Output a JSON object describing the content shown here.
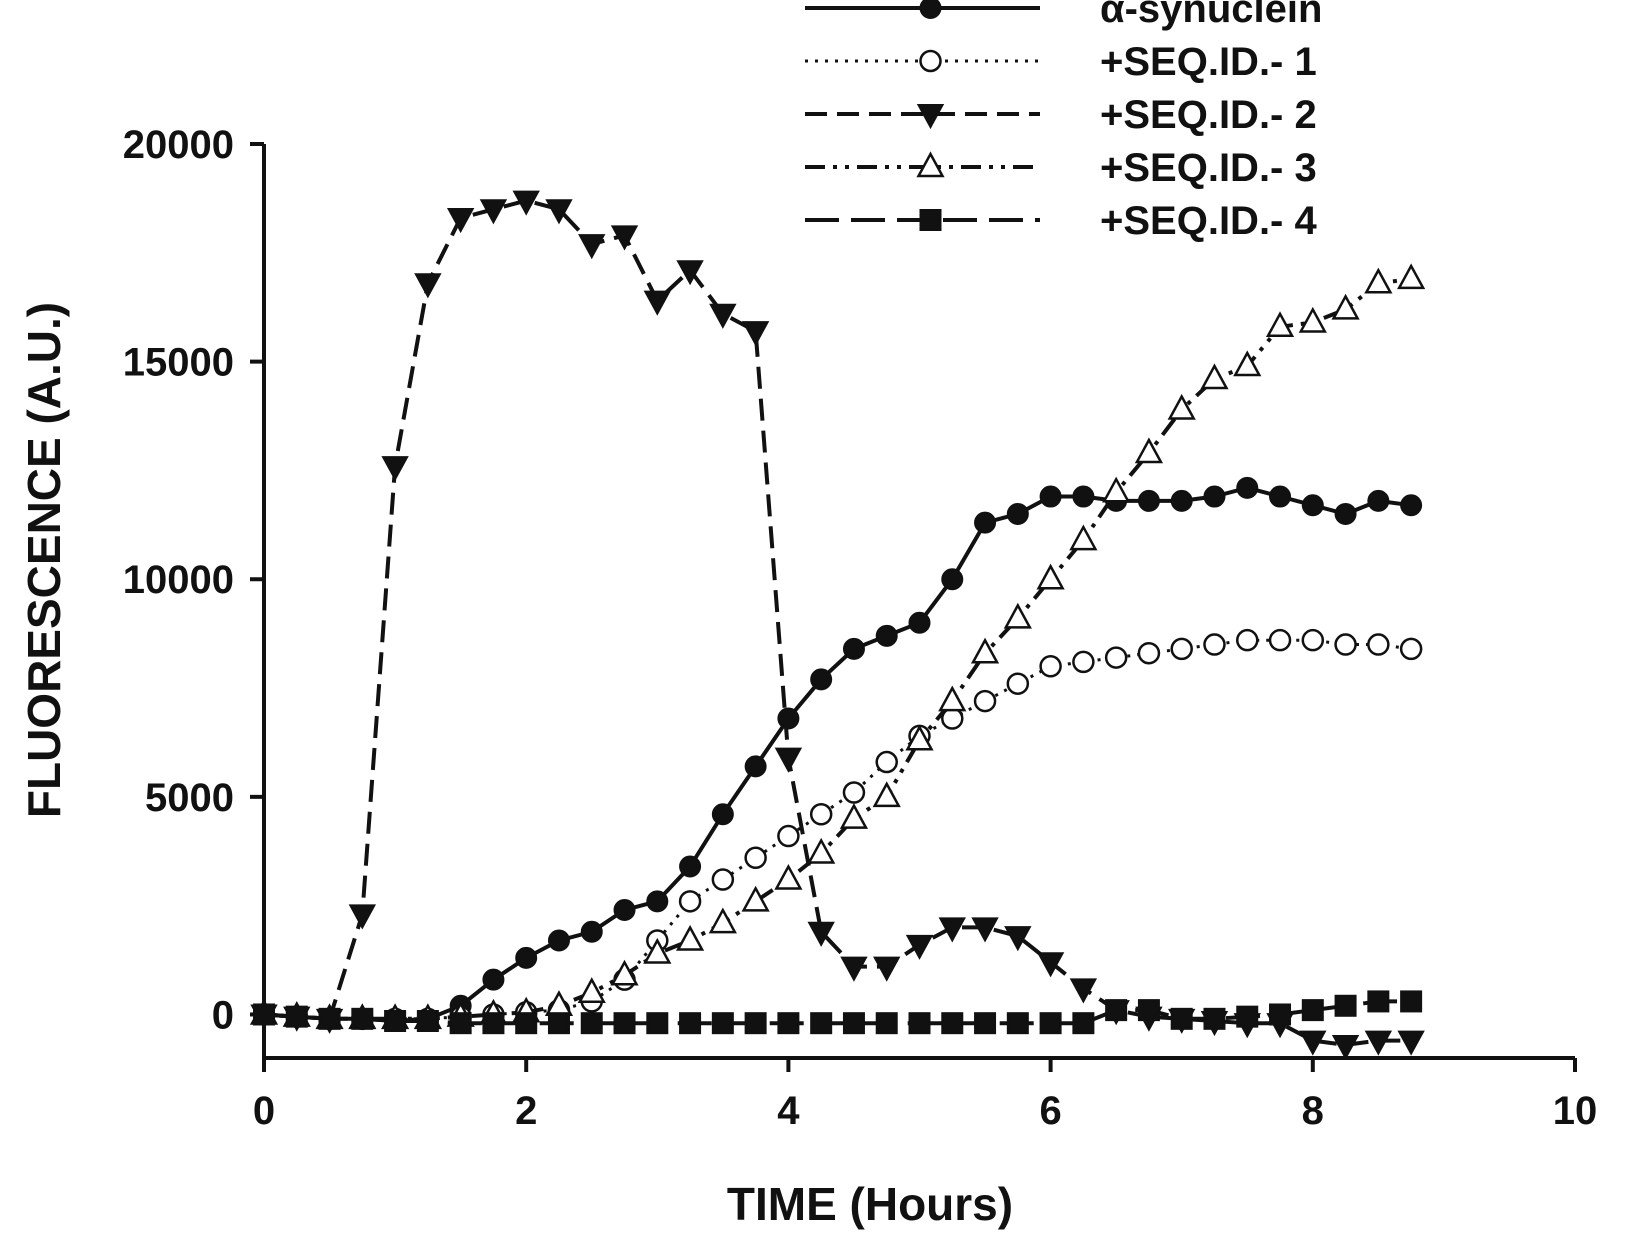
{
  "chart_data": {
    "type": "line",
    "title": "",
    "xlabel": "TIME (Hours)",
    "ylabel": "FLUORESCENCE (A.U.)",
    "xlim": [
      0,
      10
    ],
    "ylim": [
      -1000,
      20000
    ],
    "xticks": [
      0,
      2,
      4,
      6,
      8,
      10
    ],
    "yticks": [
      0,
      5000,
      10000,
      15000,
      20000
    ],
    "xtick_labels": [
      "0",
      "2",
      "4",
      "6",
      "8",
      "10"
    ],
    "ytick_labels": [
      "0",
      "5000",
      "10000",
      "15000",
      "20000"
    ],
    "grid": false,
    "legend_position": "top-right",
    "series": [
      {
        "name": "α-synuclein",
        "marker": "filled-circle",
        "line": "solid",
        "x": [
          0,
          0.25,
          0.5,
          0.75,
          1,
          1.25,
          1.5,
          1.75,
          2,
          2.25,
          2.5,
          2.75,
          3,
          3.25,
          3.5,
          3.75,
          4,
          4.25,
          4.5,
          4.75,
          5,
          5.25,
          5.5,
          5.75,
          6,
          6.25,
          6.5,
          6.75,
          7,
          7.25,
          7.5,
          7.75,
          8,
          8.25,
          8.5,
          8.75
        ],
        "y": [
          0,
          -50,
          -100,
          -100,
          -150,
          -100,
          200,
          800,
          1300,
          1700,
          1900,
          2400,
          2600,
          3400,
          4600,
          5700,
          6800,
          7700,
          8400,
          8700,
          9000,
          10000,
          11300,
          11500,
          11900,
          11900,
          11800,
          11800,
          11800,
          11900,
          12100,
          11900,
          11700,
          11500,
          11800,
          11700
        ]
      },
      {
        "name": "+SEQ.ID.- 1",
        "marker": "open-circle",
        "line": "dotted",
        "x": [
          0,
          0.25,
          0.5,
          0.75,
          1,
          1.25,
          1.5,
          1.75,
          2,
          2.25,
          2.5,
          2.75,
          3,
          3.25,
          3.5,
          3.75,
          4,
          4.25,
          4.5,
          4.75,
          5,
          5.25,
          5.5,
          5.75,
          6,
          6.25,
          6.5,
          6.75,
          7,
          7.25,
          7.5,
          7.75,
          8,
          8.25,
          8.5,
          8.75
        ],
        "y": [
          0,
          -50,
          -100,
          -100,
          -100,
          -100,
          -50,
          0,
          50,
          100,
          300,
          800,
          1700,
          2600,
          3100,
          3600,
          4100,
          4600,
          5100,
          5800,
          6400,
          6800,
          7200,
          7600,
          8000,
          8100,
          8200,
          8300,
          8400,
          8500,
          8600,
          8600,
          8600,
          8500,
          8500,
          8400
        ]
      },
      {
        "name": "+SEQ.ID.- 2",
        "marker": "filled-triangle-down",
        "line": "dashed",
        "x": [
          0,
          0.25,
          0.5,
          0.75,
          1,
          1.25,
          1.5,
          1.75,
          2,
          2.25,
          2.5,
          2.75,
          3,
          3.25,
          3.5,
          3.75,
          4,
          4.25,
          4.5,
          4.75,
          5,
          5.25,
          5.5,
          5.75,
          6,
          6.25,
          6.5,
          6.75,
          7,
          7.25,
          7.5,
          7.75,
          8,
          8.25,
          8.5,
          8.75
        ],
        "y": [
          0,
          -50,
          -100,
          2300,
          12600,
          16800,
          18300,
          18500,
          18700,
          18500,
          17700,
          17900,
          16400,
          17100,
          16100,
          15700,
          5900,
          1900,
          1100,
          1100,
          1600,
          2000,
          2000,
          1800,
          1200,
          600,
          100,
          -50,
          -100,
          -150,
          -200,
          -200,
          -600,
          -700,
          -600,
          -600
        ]
      },
      {
        "name": "+SEQ.ID.- 3",
        "marker": "open-triangle-up",
        "line": "dash-dot-dot",
        "x": [
          0,
          0.25,
          0.5,
          0.75,
          1,
          1.25,
          1.5,
          1.75,
          2,
          2.25,
          2.5,
          2.75,
          3,
          3.25,
          3.5,
          3.75,
          4,
          4.25,
          4.5,
          4.75,
          5,
          5.25,
          5.5,
          5.75,
          6,
          6.25,
          6.5,
          6.75,
          7,
          7.25,
          7.5,
          7.75,
          8,
          8.25,
          8.5,
          8.75
        ],
        "y": [
          0,
          -50,
          -100,
          -100,
          -100,
          -100,
          -50,
          0,
          50,
          200,
          500,
          900,
          1400,
          1700,
          2100,
          2600,
          3100,
          3700,
          4500,
          5000,
          6300,
          7200,
          8300,
          9100,
          10000,
          10900,
          12000,
          12900,
          13900,
          14600,
          14900,
          15800,
          15900,
          16200,
          16800,
          16900
        ]
      },
      {
        "name": "+SEQ.ID.- 4",
        "marker": "filled-square",
        "line": "long-dash",
        "x": [
          0,
          0.25,
          0.5,
          0.75,
          1,
          1.25,
          1.5,
          1.75,
          2,
          2.25,
          2.5,
          2.75,
          3,
          3.25,
          3.5,
          3.75,
          4,
          4.25,
          4.5,
          4.75,
          5,
          5.25,
          5.5,
          5.75,
          6,
          6.25,
          6.5,
          6.75,
          7,
          7.25,
          7.5,
          7.75,
          8,
          8.25,
          8.5,
          8.75
        ],
        "y": [
          0,
          -50,
          -100,
          -100,
          -150,
          -150,
          -200,
          -200,
          -200,
          -200,
          -200,
          -200,
          -200,
          -200,
          -200,
          -200,
          -200,
          -200,
          -200,
          -200,
          -200,
          -200,
          -200,
          -200,
          -200,
          -200,
          100,
          100,
          -100,
          -100,
          -50,
          0,
          100,
          200,
          300,
          300
        ]
      }
    ]
  }
}
